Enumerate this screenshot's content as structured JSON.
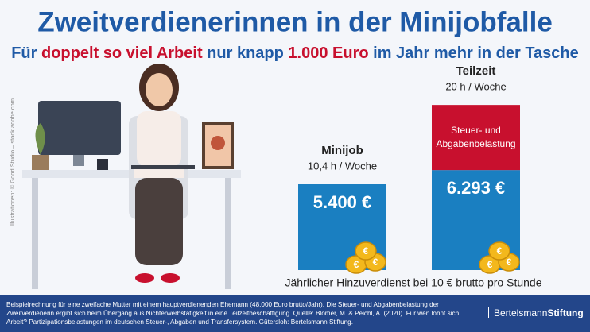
{
  "chart_data": {
    "type": "bar",
    "title": "Zweitverdienerinnen in der Minijobfalle",
    "subtitle": [
      {
        "text": "Für ",
        "color": "#1f5aa6"
      },
      {
        "text": "doppelt so viel Arbeit",
        "color": "#c8102e"
      },
      {
        "text": " nur knapp ",
        "color": "#1f5aa6"
      },
      {
        "text": "1.000 Euro",
        "color": "#c8102e"
      },
      {
        "text": " im Jahr mehr in der Tasche",
        "color": "#1f5aa6"
      }
    ],
    "categories": [
      "Minijob",
      "Teilzeit"
    ],
    "category_sublabels": [
      "10,4 h / Woche",
      "20 h / Woche"
    ],
    "series": [
      {
        "color": "#1a7fc1",
        "values": [
          5400,
          6293
        ],
        "value_labels": [
          "5.400 €",
          "6.293 €"
        ]
      },
      {
        "name": "Steuer- und Abgabenbelastung",
        "color": "#c8102e",
        "values": [
          null,
          4100
        ]
      }
    ],
    "ylim": [
      0,
      11000
    ],
    "x_label": "Jährlicher Hinzuverdienst bei 10 € brutto pro Stunde",
    "credit": "Illustrationen: © Good Studio – stock.adobe.com",
    "footnote": "Beispielrechnung für eine zweifache Mutter mit einem hauptverdienenden Ehemann (48.000 Euro brutto/Jahr). Die Steuer- und Abgabenbelastung der Zweitverdienerin ergibt sich beim Übergang aus Nichterwerbstätigkeit in eine Teilzeitbeschäftigung. Quelle: Blömer, M. & Peichl, A. (2020). Für wen lohnt sich Arbeit? Partizipationsbelastungen im deutschen Steuer-, Abgaben und Transfersystem. Gütersloh: Bertelsmann Stiftung.",
    "brand": [
      "Bertelsmann",
      "Stiftung"
    ]
  }
}
